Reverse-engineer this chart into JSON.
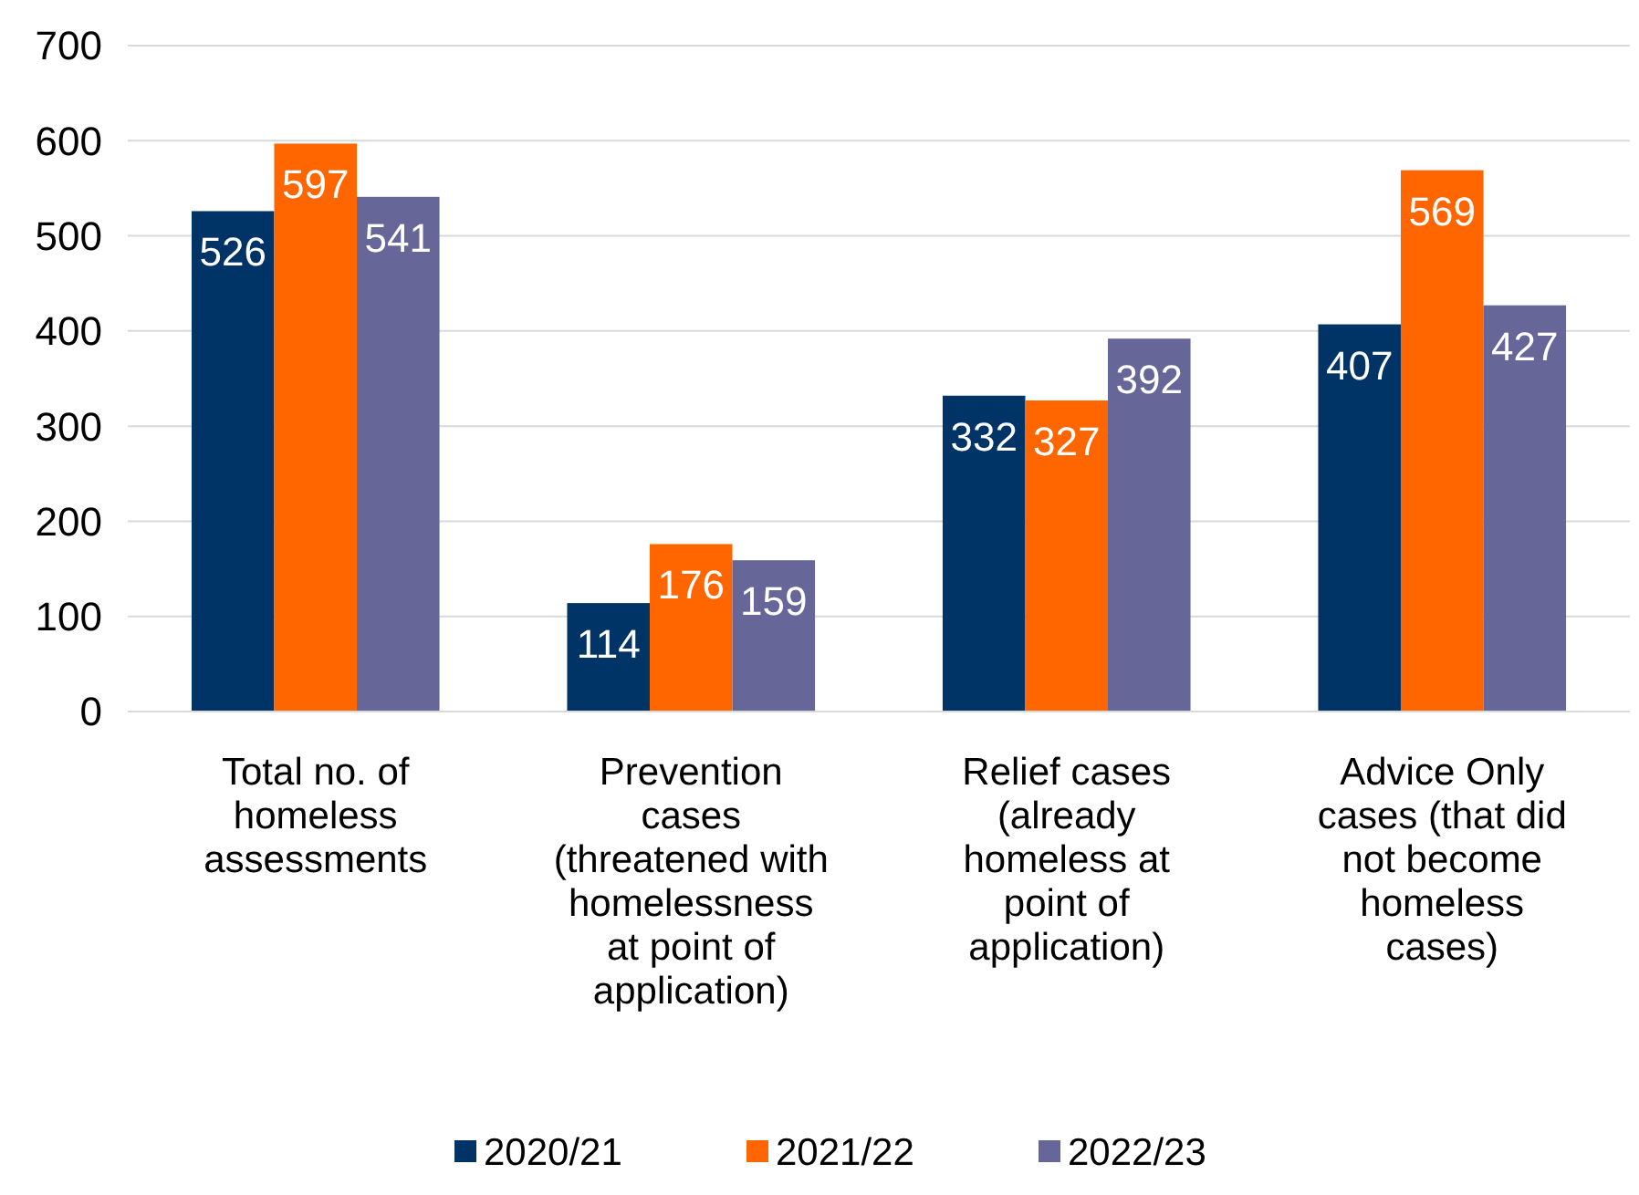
{
  "chart_data": {
    "type": "bar",
    "categories": [
      "Total no. of\nhomeless\nassessments",
      "Prevention\ncases\n(threatened with\nhomelessness\nat point of\napplication)",
      "Relief cases\n(already\nhomeless at\npoint of\napplication)",
      "Advice Only\ncases (that did\nnot become\nhomeless\ncases)"
    ],
    "series": [
      {
        "name": "2020/21",
        "color": "#003366",
        "values": [
          526,
          114,
          332,
          407
        ]
      },
      {
        "name": "2021/22",
        "color": "#ff6600",
        "values": [
          597,
          176,
          327,
          569
        ]
      },
      {
        "name": "2022/23",
        "color": "#666699",
        "values": [
          541,
          159,
          392,
          427
        ]
      }
    ],
    "ylim": [
      0,
      700
    ],
    "yticks": [
      0,
      100,
      200,
      300,
      400,
      500,
      600,
      700
    ],
    "grid": "y",
    "legend": "bottom",
    "data_labels": true
  }
}
